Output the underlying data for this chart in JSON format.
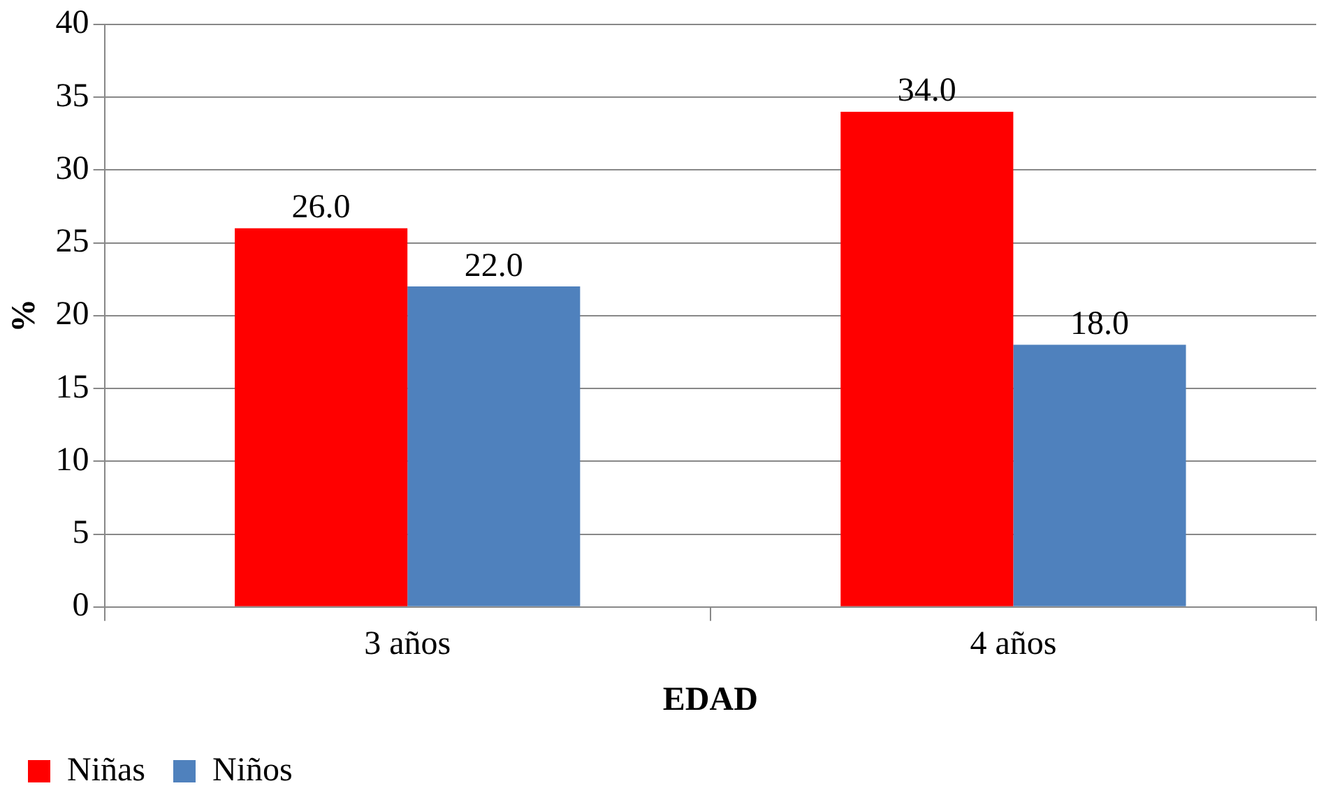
{
  "chart_data": {
    "type": "bar",
    "xlabel": "EDAD",
    "ylabel": "%",
    "categories": [
      "3 años",
      "4 años"
    ],
    "series": [
      {
        "name": "Niñas",
        "color": "#ff0000",
        "values": [
          26.0,
          34.0
        ]
      },
      {
        "name": "Niños",
        "color": "#4f81bd",
        "values": [
          22.0,
          18.0
        ]
      }
    ],
    "value_labels": [
      [
        "26.0",
        "34.0"
      ],
      [
        "22.0",
        "18.0"
      ]
    ],
    "ylim": [
      0,
      40
    ],
    "yticks": [
      0,
      5,
      10,
      15,
      20,
      25,
      30,
      35,
      40
    ],
    "grid": "y",
    "legend": "bottom left"
  }
}
